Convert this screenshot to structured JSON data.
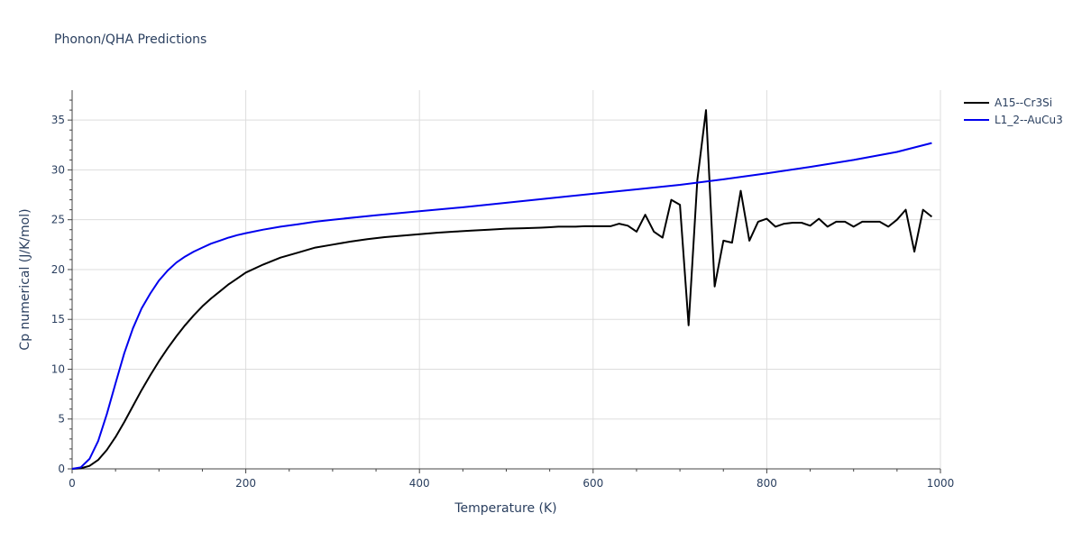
{
  "chart_data": {
    "type": "line",
    "title": "Phonon/QHA Predictions",
    "xlabel": "Temperature (K)",
    "ylabel": "Cp numerical (J/K/mol)",
    "xlim": [
      0,
      1000
    ],
    "ylim": [
      0,
      38
    ],
    "xticks": [
      0,
      200,
      400,
      600,
      800,
      1000
    ],
    "yticks": [
      0,
      5,
      10,
      15,
      20,
      25,
      30,
      35
    ],
    "grid": true,
    "legend_position": "top-right",
    "series": [
      {
        "name": "A15--Cr3Si",
        "color": "#000000",
        "x": [
          0,
          10,
          20,
          30,
          40,
          50,
          60,
          70,
          80,
          90,
          100,
          110,
          120,
          130,
          140,
          150,
          160,
          170,
          180,
          190,
          200,
          220,
          240,
          260,
          280,
          300,
          320,
          340,
          360,
          380,
          400,
          420,
          440,
          460,
          480,
          500,
          520,
          540,
          550,
          560,
          570,
          580,
          590,
          600,
          610,
          620,
          630,
          640,
          650,
          660,
          670,
          680,
          690,
          700,
          710,
          720,
          730,
          740,
          750,
          760,
          770,
          780,
          790,
          800,
          810,
          820,
          830,
          840,
          850,
          860,
          870,
          880,
          890,
          900,
          910,
          920,
          930,
          940,
          950,
          960,
          970,
          980,
          990
        ],
        "y": [
          0,
          0.05,
          0.3,
          0.9,
          1.9,
          3.2,
          4.7,
          6.3,
          7.9,
          9.4,
          10.8,
          12.1,
          13.3,
          14.4,
          15.4,
          16.3,
          17.1,
          17.8,
          18.5,
          19.1,
          19.7,
          20.5,
          21.2,
          21.7,
          22.2,
          22.5,
          22.8,
          23.05,
          23.25,
          23.4,
          23.55,
          23.7,
          23.8,
          23.9,
          24.0,
          24.1,
          24.15,
          24.2,
          24.25,
          24.3,
          24.3,
          24.3,
          24.35,
          24.35,
          24.35,
          24.35,
          24.6,
          24.4,
          23.8,
          25.5,
          23.8,
          23.2,
          27.0,
          26.5,
          14.4,
          29.0,
          36.0,
          18.3,
          22.9,
          22.7,
          27.9,
          22.9,
          24.8,
          25.1,
          24.3,
          24.6,
          24.7,
          24.7,
          24.4,
          25.1,
          24.3,
          24.8,
          24.8,
          24.3,
          24.8,
          24.8,
          24.8,
          24.3,
          25.0,
          26.0,
          21.8,
          26.0,
          25.3
        ]
      },
      {
        "name": "L1_2--AuCu3",
        "color": "#0000ee",
        "x": [
          0,
          10,
          20,
          30,
          40,
          50,
          60,
          70,
          80,
          90,
          100,
          110,
          120,
          130,
          140,
          150,
          160,
          170,
          180,
          190,
          200,
          220,
          240,
          260,
          280,
          300,
          350,
          400,
          450,
          500,
          550,
          600,
          650,
          700,
          750,
          800,
          850,
          900,
          950,
          990
        ],
        "y": [
          0,
          0.15,
          1.0,
          2.8,
          5.5,
          8.6,
          11.6,
          14.1,
          16.1,
          17.6,
          18.9,
          19.9,
          20.7,
          21.3,
          21.8,
          22.2,
          22.6,
          22.9,
          23.2,
          23.45,
          23.65,
          24.0,
          24.3,
          24.55,
          24.8,
          25.0,
          25.45,
          25.85,
          26.25,
          26.7,
          27.15,
          27.6,
          28.05,
          28.5,
          29.05,
          29.65,
          30.3,
          31.0,
          31.8,
          32.7
        ]
      }
    ]
  }
}
